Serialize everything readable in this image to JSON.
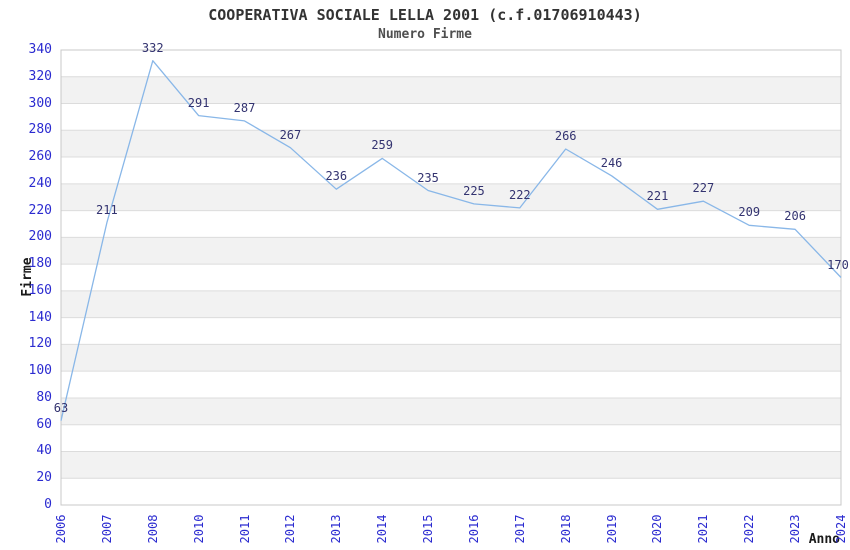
{
  "chart_data": {
    "type": "line",
    "title": "COOPERATIVA SOCIALE LELLA 2001 (c.f.01706910443)",
    "subtitle": "Numero Firme",
    "xlabel": "Anno",
    "ylabel": "Firme",
    "categories": [
      "2006",
      "2007",
      "2008",
      "2010",
      "2011",
      "2012",
      "2013",
      "2014",
      "2015",
      "2016",
      "2017",
      "2018",
      "2019",
      "2020",
      "2021",
      "2022",
      "2023",
      "2024"
    ],
    "values": [
      63,
      211,
      332,
      291,
      287,
      267,
      236,
      259,
      235,
      225,
      222,
      266,
      246,
      221,
      227,
      209,
      206,
      170
    ],
    "ylim": [
      0,
      340
    ],
    "ytick_step": 20,
    "grid": true,
    "legend": "none",
    "colors": {
      "line": "#89b7e8",
      "band": "#f2f2f2",
      "gridline": "#dcdcdc",
      "border": "#c8c8c8",
      "tick_label": "#2b2bd0",
      "data_label": "#333370",
      "title": "#333333",
      "subtitle": "#4f4f4f",
      "axis_title": "#1a1a1a",
      "background": "#ffffff"
    }
  }
}
